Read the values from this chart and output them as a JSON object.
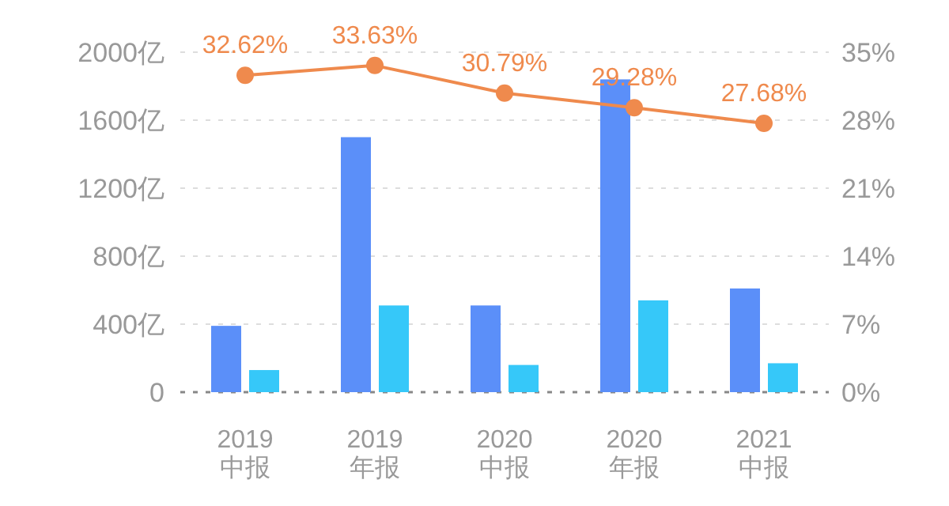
{
  "chart_data": {
    "type": "bar",
    "categories": [
      "2019\n中报",
      "2019\n年报",
      "2020\n中报",
      "2020\n年报",
      "2021\n中报"
    ],
    "series": [
      {
        "color": "#5b8ff9",
        "values": [
          390,
          1500,
          510,
          1840,
          610
        ]
      },
      {
        "color": "#36c8f9",
        "values": [
          130,
          510,
          160,
          540,
          170
        ]
      },
      {
        "type": "line",
        "axis": "y2",
        "color": "#ef8a4d",
        "marker": "circle",
        "values": [
          32.62,
          33.63,
          30.79,
          29.28,
          27.68
        ],
        "value_labels": [
          "32.62%",
          "33.63%",
          "30.79%",
          "29.28%",
          "27.68%"
        ]
      }
    ],
    "ylim": [
      0,
      2000
    ],
    "yticks": [
      0,
      {
        "value": 400,
        "label": "400亿"
      },
      {
        "value": 800,
        "label": "800亿"
      },
      {
        "value": 1200,
        "label": "1200亿"
      },
      {
        "value": 1600,
        "label": "1600亿"
      },
      {
        "value": 2000,
        "label": "2000亿"
      }
    ],
    "y2lim": [
      0,
      35
    ],
    "y2ticks": [
      {
        "value": 0,
        "label": "0%"
      },
      {
        "value": 7,
        "label": "7%"
      },
      {
        "value": 14,
        "label": "14%"
      },
      {
        "value": 21,
        "label": "21%"
      },
      {
        "value": 28,
        "label": "28%"
      },
      {
        "value": 35,
        "label": "35%"
      }
    ],
    "grid": "y"
  }
}
